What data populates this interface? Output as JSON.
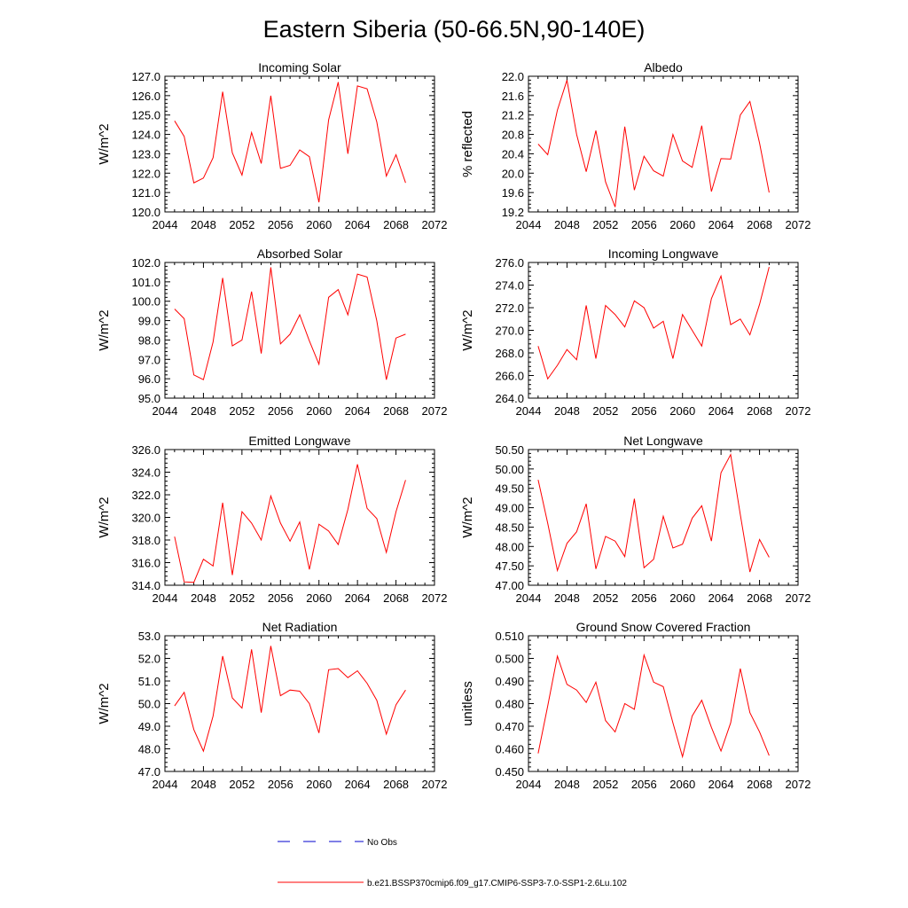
{
  "title": "Eastern Siberia (50-66.5N,90-140E)",
  "colors": {
    "model": "#ff0000",
    "obs": "#0000cc",
    "axis": "#000000"
  },
  "legend": {
    "obs_label": "No Obs",
    "model_label": "b.e21.BSSP370cmip6.f09_g17.CMIP6-SSP3-7.0-SSP1-2.6Lu.102"
  },
  "chart_data": [
    {
      "type": "line",
      "title": "Incoming Solar",
      "ylabel": "W/m^2",
      "xlim": [
        2044,
        2072
      ],
      "ylim": [
        120,
        127
      ],
      "xticks": [
        "2044",
        "2048",
        "2052",
        "2056",
        "2060",
        "2064",
        "2068",
        "2072"
      ],
      "yticks": [
        "120.0",
        "121.0",
        "122.0",
        "123.0",
        "124.0",
        "125.0",
        "126.0",
        "127.0"
      ],
      "x": [
        2045,
        2046,
        2047,
        2048,
        2049,
        2050,
        2051,
        2052,
        2053,
        2054,
        2055,
        2056,
        2057,
        2058,
        2059,
        2060,
        2061,
        2062,
        2063,
        2064,
        2065,
        2066,
        2067,
        2068,
        2069
      ],
      "series": [
        {
          "name": "b.e21.BSSP370cmip6.f09_g17.CMIP6-SSP3-7.0-SSP1-2.6Lu.102",
          "values": [
            124.7,
            123.9,
            121.5,
            121.75,
            122.8,
            126.2,
            123.05,
            121.9,
            124.1,
            122.5,
            126.0,
            122.25,
            122.4,
            123.2,
            122.85,
            120.5,
            124.75,
            126.7,
            123.0,
            126.5,
            126.35,
            124.65,
            121.85,
            122.95,
            121.5
          ]
        }
      ]
    },
    {
      "type": "line",
      "title": "Albedo",
      "ylabel": "% reflected",
      "xlim": [
        2044,
        2072
      ],
      "ylim": [
        19.2,
        22.0
      ],
      "xticks": [
        "2044",
        "2048",
        "2052",
        "2056",
        "2060",
        "2064",
        "2068",
        "2072"
      ],
      "yticks": [
        "19.2",
        "19.6",
        "20.0",
        "20.4",
        "20.8",
        "21.2",
        "21.6",
        "22.0"
      ],
      "x": [
        2045,
        2046,
        2047,
        2048,
        2049,
        2050,
        2051,
        2052,
        2053,
        2054,
        2055,
        2056,
        2057,
        2058,
        2059,
        2060,
        2061,
        2062,
        2063,
        2064,
        2065,
        2066,
        2067,
        2068,
        2069
      ],
      "series": [
        {
          "name": "b.e21.BSSP370cmip6.f09_g17.CMIP6-SSP3-7.0-SSP1-2.6Lu.102",
          "values": [
            20.6,
            20.38,
            21.3,
            21.92,
            20.8,
            20.03,
            20.88,
            19.82,
            19.3,
            20.96,
            19.65,
            20.35,
            20.05,
            19.94,
            20.8,
            20.25,
            20.12,
            20.98,
            19.62,
            20.3,
            20.29,
            21.2,
            21.48,
            20.62,
            19.6
          ]
        }
      ]
    },
    {
      "type": "line",
      "title": "Absorbed Solar",
      "ylabel": "W/m^2",
      "xlim": [
        2044,
        2072
      ],
      "ylim": [
        95,
        102
      ],
      "xticks": [
        "2044",
        "2048",
        "2052",
        "2056",
        "2060",
        "2064",
        "2068",
        "2072"
      ],
      "yticks": [
        "95.0",
        "96.0",
        "97.0",
        "98.0",
        "99.0",
        "100.0",
        "101.0",
        "102.0"
      ],
      "x": [
        2045,
        2046,
        2047,
        2048,
        2049,
        2050,
        2051,
        2052,
        2053,
        2054,
        2055,
        2056,
        2057,
        2058,
        2059,
        2060,
        2061,
        2062,
        2063,
        2064,
        2065,
        2066,
        2067,
        2068,
        2069
      ],
      "series": [
        {
          "name": "b.e21.BSSP370cmip6.f09_g17.CMIP6-SSP3-7.0-SSP1-2.6Lu.102",
          "values": [
            99.6,
            99.1,
            96.2,
            95.95,
            97.9,
            101.2,
            97.7,
            98.0,
            100.5,
            97.3,
            101.75,
            97.8,
            98.3,
            99.3,
            97.95,
            96.75,
            100.2,
            100.6,
            99.3,
            101.4,
            101.25,
            99.0,
            95.95,
            98.1,
            98.3
          ]
        }
      ]
    },
    {
      "type": "line",
      "title": "Incoming Longwave",
      "ylabel": "W/m^2",
      "xlim": [
        2044,
        2072
      ],
      "ylim": [
        264,
        276
      ],
      "xticks": [
        "2044",
        "2048",
        "2052",
        "2056",
        "2060",
        "2064",
        "2068",
        "2072"
      ],
      "yticks": [
        "264.0",
        "266.0",
        "268.0",
        "270.0",
        "272.0",
        "274.0",
        "276.0"
      ],
      "x": [
        2045,
        2046,
        2047,
        2048,
        2049,
        2050,
        2051,
        2052,
        2053,
        2054,
        2055,
        2056,
        2057,
        2058,
        2059,
        2060,
        2061,
        2062,
        2063,
        2064,
        2065,
        2066,
        2067,
        2068,
        2069
      ],
      "series": [
        {
          "name": "b.e21.BSSP370cmip6.f09_g17.CMIP6-SSP3-7.0-SSP1-2.6Lu.102",
          "values": [
            268.6,
            265.7,
            266.9,
            268.3,
            267.4,
            272.2,
            267.5,
            272.2,
            271.4,
            270.3,
            272.6,
            272.0,
            270.2,
            270.8,
            267.5,
            271.4,
            270.0,
            268.6,
            272.8,
            274.8,
            270.5,
            271.0,
            269.6,
            272.3,
            275.6
          ]
        }
      ]
    },
    {
      "type": "line",
      "title": "Emitted Longwave",
      "ylabel": "W/m^2",
      "xlim": [
        2044,
        2072
      ],
      "ylim": [
        314,
        326
      ],
      "xticks": [
        "2044",
        "2048",
        "2052",
        "2056",
        "2060",
        "2064",
        "2068",
        "2072"
      ],
      "yticks": [
        "314.0",
        "316.0",
        "318.0",
        "320.0",
        "322.0",
        "324.0",
        "326.0"
      ],
      "x": [
        2045,
        2046,
        2047,
        2048,
        2049,
        2050,
        2051,
        2052,
        2053,
        2054,
        2055,
        2056,
        2057,
        2058,
        2059,
        2060,
        2061,
        2062,
        2063,
        2064,
        2065,
        2066,
        2067,
        2068,
        2069
      ],
      "series": [
        {
          "name": "b.e21.BSSP370cmip6.f09_g17.CMIP6-SSP3-7.0-SSP1-2.6Lu.102",
          "values": [
            318.3,
            314.3,
            314.25,
            316.3,
            315.7,
            321.3,
            314.9,
            320.5,
            319.5,
            318.0,
            321.9,
            319.5,
            317.9,
            319.6,
            315.4,
            319.4,
            318.8,
            317.6,
            320.7,
            324.7,
            320.8,
            319.9,
            316.9,
            320.5,
            323.3
          ]
        }
      ]
    },
    {
      "type": "line",
      "title": "Net Longwave",
      "ylabel": "W/m^2",
      "xlim": [
        2044,
        2072
      ],
      "ylim": [
        47.0,
        50.5
      ],
      "xticks": [
        "2044",
        "2048",
        "2052",
        "2056",
        "2060",
        "2064",
        "2068",
        "2072"
      ],
      "yticks": [
        "47.00",
        "47.50",
        "48.00",
        "48.50",
        "49.00",
        "49.50",
        "50.00",
        "50.50"
      ],
      "x": [
        2045,
        2046,
        2047,
        2048,
        2049,
        2050,
        2051,
        2052,
        2053,
        2054,
        2055,
        2056,
        2057,
        2058,
        2059,
        2060,
        2061,
        2062,
        2063,
        2064,
        2065,
        2066,
        2067,
        2068,
        2069
      ],
      "series": [
        {
          "name": "b.e21.BSSP370cmip6.f09_g17.CMIP6-SSP3-7.0-SSP1-2.6Lu.102",
          "values": [
            49.72,
            48.6,
            47.38,
            48.08,
            48.38,
            49.1,
            47.42,
            48.26,
            48.14,
            47.74,
            49.23,
            47.45,
            47.67,
            48.78,
            47.96,
            48.06,
            48.73,
            49.05,
            48.14,
            49.9,
            50.37,
            48.82,
            47.34,
            48.18,
            47.72
          ]
        }
      ]
    },
    {
      "type": "line",
      "title": "Net Radiation",
      "ylabel": "W/m^2",
      "xlim": [
        2044,
        2072
      ],
      "ylim": [
        47,
        53
      ],
      "xticks": [
        "2044",
        "2048",
        "2052",
        "2056",
        "2060",
        "2064",
        "2068",
        "2072"
      ],
      "yticks": [
        "47.0",
        "48.0",
        "49.0",
        "50.0",
        "51.0",
        "52.0",
        "53.0"
      ],
      "x": [
        2045,
        2046,
        2047,
        2048,
        2049,
        2050,
        2051,
        2052,
        2053,
        2054,
        2055,
        2056,
        2057,
        2058,
        2059,
        2060,
        2061,
        2062,
        2063,
        2064,
        2065,
        2066,
        2067,
        2068,
        2069
      ],
      "series": [
        {
          "name": "b.e21.BSSP370cmip6.f09_g17.CMIP6-SSP3-7.0-SSP1-2.6Lu.102",
          "values": [
            49.9,
            50.5,
            48.85,
            47.9,
            49.45,
            52.1,
            50.25,
            49.8,
            52.4,
            49.6,
            52.55,
            50.35,
            50.6,
            50.55,
            50.0,
            48.7,
            51.5,
            51.55,
            51.15,
            51.45,
            50.9,
            50.15,
            48.65,
            49.95,
            50.6
          ]
        }
      ]
    },
    {
      "type": "line",
      "title": "Ground Snow Covered Fraction",
      "ylabel": "unitless",
      "xlim": [
        2044,
        2072
      ],
      "ylim": [
        0.45,
        0.51
      ],
      "xticks": [
        "2044",
        "2048",
        "2052",
        "2056",
        "2060",
        "2064",
        "2068",
        "2072"
      ],
      "yticks": [
        "0.450",
        "0.460",
        "0.470",
        "0.480",
        "0.490",
        "0.500",
        "0.510"
      ],
      "x": [
        2045,
        2046,
        2047,
        2048,
        2049,
        2050,
        2051,
        2052,
        2053,
        2054,
        2055,
        2056,
        2057,
        2058,
        2059,
        2060,
        2061,
        2062,
        2063,
        2064,
        2065,
        2066,
        2067,
        2068,
        2069
      ],
      "series": [
        {
          "name": "b.e21.BSSP370cmip6.f09_g17.CMIP6-SSP3-7.0-SSP1-2.6Lu.102",
          "values": [
            0.458,
            0.479,
            0.501,
            0.4885,
            0.486,
            0.4805,
            0.4895,
            0.4725,
            0.4675,
            0.48,
            0.4775,
            0.5015,
            0.4895,
            0.4875,
            0.4715,
            0.4565,
            0.4745,
            0.4815,
            0.4695,
            0.459,
            0.4715,
            0.4955,
            0.476,
            0.4675,
            0.457
          ]
        }
      ]
    }
  ]
}
